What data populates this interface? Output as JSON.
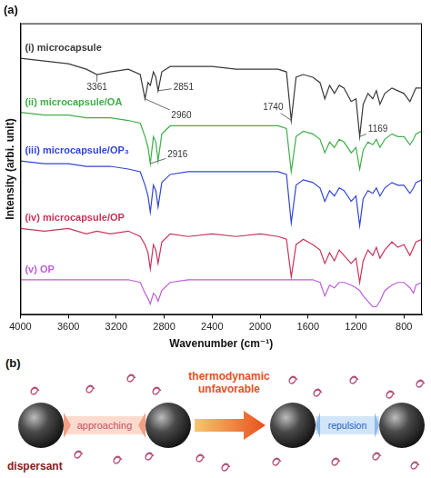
{
  "chart_data": {
    "type": "line",
    "title": "(a)",
    "x_label": "Wavenumber (cm⁻¹)",
    "y_label": "Intensity (arbi. unit)",
    "x": [
      4000,
      3800,
      3600,
      3450,
      3361,
      3250,
      3100,
      3000,
      2960,
      2935,
      2916,
      2890,
      2870,
      2851,
      2820,
      2750,
      2600,
      2400,
      2200,
      2000,
      1850,
      1780,
      1740,
      1700,
      1640,
      1560,
      1500,
      1460,
      1420,
      1380,
      1340,
      1300,
      1240,
      1200,
      1169,
      1140,
      1100,
      1060,
      1030,
      1000,
      960,
      900,
      850,
      800,
      750,
      720,
      700,
      650
    ],
    "series": [
      {
        "name": "(i) microcapsule",
        "color": "#3a3a3a",
        "values": [
          95,
          94,
          93,
          91,
          89,
          90,
          91,
          89,
          80,
          86,
          85,
          90,
          88,
          83,
          90,
          92,
          92,
          92,
          91,
          91,
          91,
          90,
          72,
          88,
          89,
          88,
          86,
          80,
          85,
          82,
          85,
          84,
          79,
          80,
          66,
          78,
          82,
          80,
          83,
          78,
          82,
          84,
          83,
          82,
          79,
          82,
          84,
          84
        ]
      },
      {
        "name": "(ii) microcapsule/OA",
        "color": "#3fae49",
        "values": [
          75,
          74,
          74,
          73,
          73,
          73,
          72,
          71,
          66,
          62,
          56,
          66,
          64,
          57,
          67,
          70,
          70,
          70,
          70,
          70,
          70,
          69,
          53,
          66,
          68,
          67,
          65,
          60,
          64,
          62,
          65,
          64,
          60,
          62,
          54,
          61,
          64,
          63,
          65,
          62,
          65,
          67,
          66,
          66,
          63,
          65,
          67,
          68
        ]
      },
      {
        "name": "(iii) microcapsule/OP₃",
        "color": "#3347d4",
        "values": [
          57,
          56,
          56,
          55,
          55,
          55,
          54,
          53,
          48,
          44,
          38,
          48,
          46,
          40,
          49,
          52,
          53,
          53,
          53,
          53,
          53,
          52,
          34,
          48,
          50,
          49,
          47,
          42,
          46,
          44,
          47,
          46,
          42,
          44,
          33,
          43,
          46,
          45,
          47,
          44,
          47,
          49,
          48,
          48,
          45,
          47,
          49,
          50
        ]
      },
      {
        "name": "(iv) microcapsule/OP",
        "color": "#c7355a",
        "values": [
          32,
          31,
          32,
          30,
          31,
          30,
          31,
          29,
          26,
          23,
          17,
          26,
          24,
          19,
          27,
          30,
          29,
          30,
          29,
          30,
          29,
          28,
          14,
          26,
          28,
          26,
          24,
          19,
          23,
          20,
          24,
          22,
          19,
          21,
          12,
          20,
          24,
          22,
          25,
          21,
          24,
          27,
          25,
          26,
          22,
          25,
          27,
          28
        ]
      },
      {
        "name": "(v) OP",
        "color": "#bf5ddc",
        "values": [
          13,
          13,
          13,
          13,
          13,
          13,
          13,
          12,
          8,
          6,
          4,
          8,
          7,
          5,
          9,
          12,
          13,
          13,
          13,
          13,
          13,
          13,
          13,
          13,
          13,
          13,
          12,
          7,
          11,
          10,
          12,
          12,
          11,
          10,
          9,
          7,
          5,
          3,
          3,
          5,
          9,
          11,
          12,
          12,
          10,
          8,
          11,
          12
        ]
      }
    ],
    "xlim": [
      4000,
      650
    ],
    "xticks": [
      4000,
      3600,
      3200,
      2800,
      2400,
      2000,
      1600,
      1200,
      800
    ],
    "ylim": [
      0,
      108
    ],
    "tick_labels": "x",
    "grid": false,
    "annotations": [
      {
        "label": "3361",
        "x": 3361,
        "series": "(i) microcapsule"
      },
      {
        "label": "2960",
        "x": 2960,
        "series": "(i) microcapsule"
      },
      {
        "label": "2916",
        "x": 2916,
        "series": "(ii) microcapsule/OA"
      },
      {
        "label": "2851",
        "x": 2851,
        "series": "(i) microcapsule"
      },
      {
        "label": "1740",
        "x": 1740,
        "series": "(i) microcapsule"
      },
      {
        "label": "1169",
        "x": 1169,
        "series": "(i) microcapsule"
      }
    ]
  },
  "diagram": {
    "label": "(b)",
    "approach_label": "approaching",
    "arrow_label": "thermodynamic unfavorable",
    "repel_label": "repulsion",
    "dispersant_label": "dispersant"
  }
}
